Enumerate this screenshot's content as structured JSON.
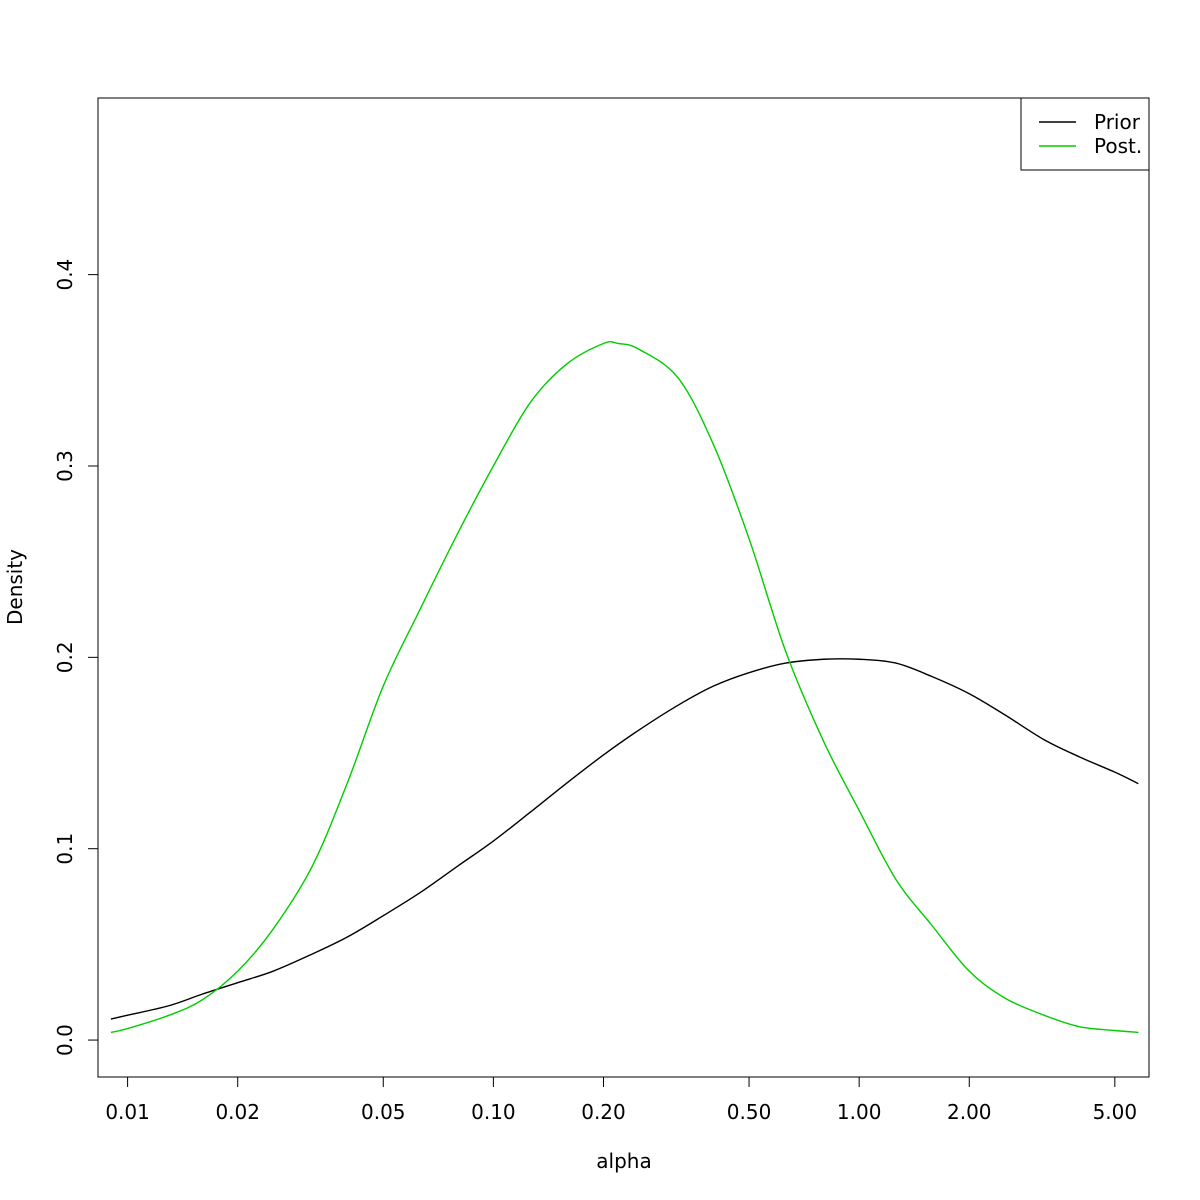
{
  "chart_data": {
    "type": "line",
    "xlabel": "alpha",
    "ylabel": "Density",
    "x_scale": "log",
    "xlim": [
      0.0083,
      6.2
    ],
    "ylim": [
      -0.0193,
      0.4923
    ],
    "x_ticks": [
      0.01,
      0.02,
      0.05,
      0.1,
      0.2,
      0.5,
      1.0,
      2.0,
      5.0
    ],
    "x_tick_labels": [
      "0.01",
      "0.02",
      "0.05",
      "0.10",
      "0.20",
      "0.50",
      "1.00",
      "2.00",
      "5.00"
    ],
    "y_ticks": [
      0.0,
      0.1,
      0.2,
      0.3,
      0.4
    ],
    "y_tick_labels": [
      "0.0",
      "0.1",
      "0.2",
      "0.3",
      "0.4"
    ],
    "grid": false,
    "legend_position": "top-right",
    "series": [
      {
        "name": "Prior",
        "color": "#000000",
        "x": [
          0.009,
          0.01,
          0.013,
          0.016,
          0.02,
          0.025,
          0.032,
          0.04,
          0.05,
          0.063,
          0.08,
          0.1,
          0.126,
          0.158,
          0.2,
          0.25,
          0.32,
          0.4,
          0.5,
          0.63,
          0.8,
          1.0,
          1.26,
          1.58,
          2.0,
          2.5,
          3.2,
          4.0,
          5.0,
          5.8
        ],
        "y": [
          0.011,
          0.013,
          0.018,
          0.024,
          0.03,
          0.036,
          0.045,
          0.054,
          0.065,
          0.077,
          0.091,
          0.104,
          0.119,
          0.134,
          0.149,
          0.162,
          0.175,
          0.185,
          0.192,
          0.197,
          0.199,
          0.199,
          0.197,
          0.19,
          0.181,
          0.17,
          0.157,
          0.148,
          0.14,
          0.134
        ]
      },
      {
        "name": "Post.",
        "color": "#00cd00",
        "x": [
          0.009,
          0.01,
          0.013,
          0.016,
          0.02,
          0.025,
          0.032,
          0.04,
          0.05,
          0.063,
          0.08,
          0.1,
          0.126,
          0.158,
          0.2,
          0.22,
          0.25,
          0.32,
          0.4,
          0.5,
          0.63,
          0.8,
          1.0,
          1.26,
          1.58,
          2.0,
          2.5,
          3.2,
          4.0,
          5.0,
          5.8
        ],
        "y": [
          0.004,
          0.006,
          0.013,
          0.021,
          0.036,
          0.058,
          0.091,
          0.135,
          0.185,
          0.225,
          0.265,
          0.3,
          0.333,
          0.353,
          0.364,
          0.364,
          0.361,
          0.346,
          0.311,
          0.262,
          0.203,
          0.156,
          0.12,
          0.084,
          0.06,
          0.036,
          0.022,
          0.013,
          0.007,
          0.005,
          0.004
        ]
      }
    ]
  }
}
